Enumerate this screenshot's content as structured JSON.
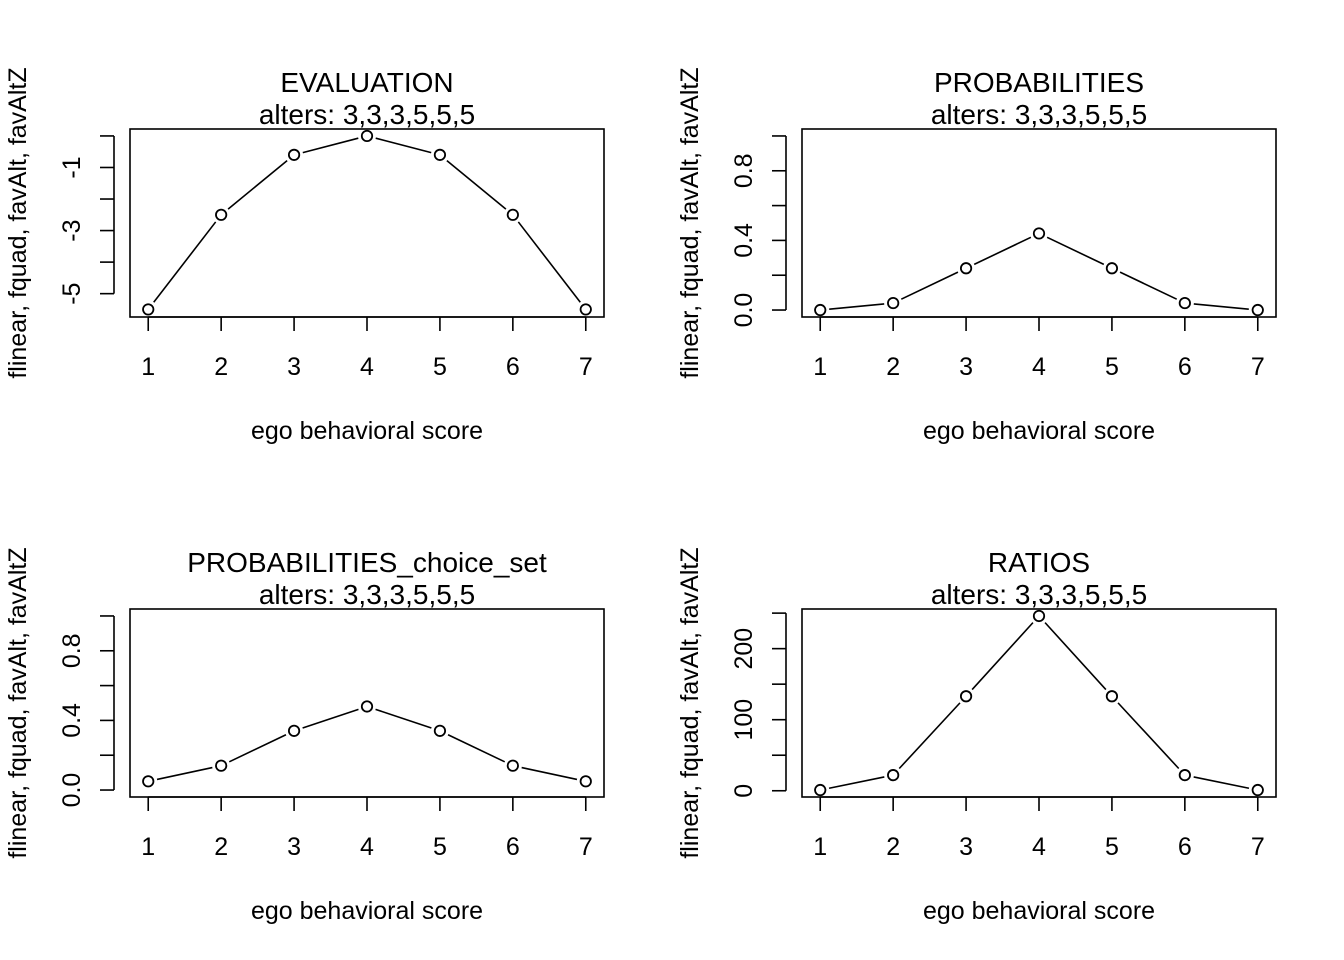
{
  "chart_data": [
    {
      "type": "line",
      "title": "EVALUATION",
      "subtitle": "alters: 3,3,3,5,5,5",
      "xlabel": "ego behavioral score",
      "ylabel": "flinear, fquad, favAlt, favAltZ",
      "x": [
        1,
        2,
        3,
        4,
        5,
        6,
        7
      ],
      "series": [
        {
          "values": [
            -5.5,
            -2.5,
            -0.6,
            0.0,
            -0.6,
            -2.5,
            -5.5
          ]
        }
      ],
      "xlim": [
        0.75,
        7.25
      ],
      "ylim": [
        -5.74,
        0.22
      ],
      "xticks": [
        1,
        2,
        3,
        4,
        5,
        6,
        7
      ],
      "yticks_labeled": [
        -5,
        -3,
        -1
      ],
      "yticks_minor": [
        -4,
        -2,
        0
      ],
      "grid": false,
      "legend": "none"
    },
    {
      "type": "line",
      "title": "PROBABILITIES",
      "subtitle": "alters: 3,3,3,5,5,5",
      "xlabel": "ego behavioral score",
      "ylabel": "flinear, fquad, favAlt, favAltZ",
      "x": [
        1,
        2,
        3,
        4,
        5,
        6,
        7
      ],
      "series": [
        {
          "values": [
            0.0,
            0.04,
            0.24,
            0.44,
            0.24,
            0.04,
            0.0
          ]
        }
      ],
      "xlim": [
        0.75,
        7.25
      ],
      "ylim": [
        -0.04,
        1.04
      ],
      "xticks": [
        1,
        2,
        3,
        4,
        5,
        6,
        7
      ],
      "yticks_labeled": [
        0.0,
        0.4,
        0.8
      ],
      "yticks_minor": [
        0.2,
        0.6,
        1.0
      ],
      "grid": false,
      "legend": "none"
    },
    {
      "type": "line",
      "title": "PROBABILITIES_choice_set",
      "subtitle": "alters: 3,3,3,5,5,5",
      "xlabel": "ego behavioral score",
      "ylabel": "flinear, fquad, favAlt, favAltZ",
      "x": [
        1,
        2,
        3,
        4,
        5,
        6,
        7
      ],
      "series": [
        {
          "values": [
            0.05,
            0.14,
            0.34,
            0.48,
            0.34,
            0.14,
            0.05
          ]
        }
      ],
      "xlim": [
        0.75,
        7.25
      ],
      "ylim": [
        -0.04,
        1.04
      ],
      "xticks": [
        1,
        2,
        3,
        4,
        5,
        6,
        7
      ],
      "yticks_labeled": [
        0.0,
        0.4,
        0.8
      ],
      "yticks_minor": [
        0.2,
        0.6,
        1.0
      ],
      "grid": false,
      "legend": "none"
    },
    {
      "type": "line",
      "title": "RATIOS",
      "subtitle": "alters: 3,3,3,5,5,5",
      "xlabel": "ego behavioral score",
      "ylabel": "flinear, fquad, favAlt, favAltZ",
      "x": [
        1,
        2,
        3,
        4,
        5,
        6,
        7
      ],
      "series": [
        {
          "values": [
            1,
            22,
            133,
            246,
            133,
            22,
            1
          ]
        }
      ],
      "xlim": [
        0.75,
        7.25
      ],
      "ylim": [
        -8.8,
        255.8
      ],
      "xticks": [
        1,
        2,
        3,
        4,
        5,
        6,
        7
      ],
      "yticks_labeled": [
        0,
        100,
        200
      ],
      "yticks_minor": [
        50,
        150,
        250
      ],
      "grid": false,
      "legend": "none"
    }
  ]
}
